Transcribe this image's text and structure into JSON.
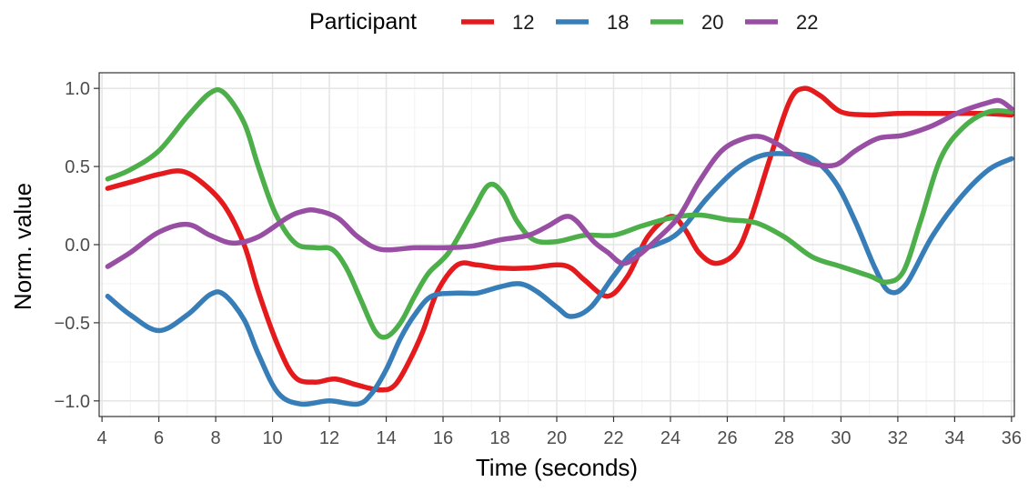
{
  "chart_data": {
    "type": "line",
    "title": "",
    "xlabel": "Time (seconds)",
    "ylabel": "Norm. value",
    "xlim": [
      3.9,
      36.1
    ],
    "ylim": [
      -1.1,
      1.1
    ],
    "x_ticks": [
      4,
      6,
      8,
      10,
      12,
      14,
      16,
      18,
      20,
      22,
      24,
      26,
      28,
      30,
      32,
      34,
      36
    ],
    "y_ticks": [
      -1.0,
      -0.5,
      0.0,
      0.5,
      1.0
    ],
    "x_tick_labels": [
      "4",
      "6",
      "8",
      "10",
      "12",
      "14",
      "16",
      "18",
      "20",
      "22",
      "24",
      "26",
      "28",
      "30",
      "32",
      "34",
      "36"
    ],
    "y_tick_labels": [
      "−1.0",
      "−0.5",
      "0.0",
      "0.5",
      "1.0"
    ],
    "grid": true,
    "legend": {
      "title": "Participant",
      "placement": "top"
    },
    "series": [
      {
        "name": "12",
        "color": "#e41a1c",
        "points": [
          [
            4.2,
            0.36
          ],
          [
            5,
            0.4
          ],
          [
            6,
            0.45
          ],
          [
            6.8,
            0.47
          ],
          [
            7.5,
            0.4
          ],
          [
            8.3,
            0.25
          ],
          [
            9,
            0.0
          ],
          [
            9.5,
            -0.3
          ],
          [
            10.2,
            -0.65
          ],
          [
            10.8,
            -0.85
          ],
          [
            11.5,
            -0.88
          ],
          [
            12.2,
            -0.86
          ],
          [
            13,
            -0.9
          ],
          [
            13.8,
            -0.93
          ],
          [
            14.3,
            -0.9
          ],
          [
            14.8,
            -0.75
          ],
          [
            15.3,
            -0.55
          ],
          [
            15.8,
            -0.3
          ],
          [
            16.5,
            -0.13
          ],
          [
            17.2,
            -0.13
          ],
          [
            18,
            -0.15
          ],
          [
            19,
            -0.15
          ],
          [
            20,
            -0.13
          ],
          [
            20.5,
            -0.15
          ],
          [
            21,
            -0.23
          ],
          [
            21.8,
            -0.33
          ],
          [
            22.5,
            -0.2
          ],
          [
            23.2,
            0.05
          ],
          [
            24,
            0.18
          ],
          [
            24.5,
            0.1
          ],
          [
            25,
            -0.05
          ],
          [
            25.6,
            -0.12
          ],
          [
            26.3,
            -0.05
          ],
          [
            26.8,
            0.15
          ],
          [
            27.5,
            0.55
          ],
          [
            28.2,
            0.92
          ],
          [
            28.7,
            1.0
          ],
          [
            29.3,
            0.95
          ],
          [
            30,
            0.85
          ],
          [
            31,
            0.83
          ],
          [
            32,
            0.84
          ],
          [
            33,
            0.84
          ],
          [
            34,
            0.84
          ],
          [
            35,
            0.84
          ],
          [
            36,
            0.83
          ]
        ]
      },
      {
        "name": "18",
        "color": "#377eb8",
        "points": [
          [
            4.2,
            -0.33
          ],
          [
            5,
            -0.45
          ],
          [
            6,
            -0.55
          ],
          [
            7,
            -0.45
          ],
          [
            7.8,
            -0.32
          ],
          [
            8.3,
            -0.32
          ],
          [
            9,
            -0.48
          ],
          [
            9.5,
            -0.7
          ],
          [
            10.2,
            -0.95
          ],
          [
            11,
            -1.02
          ],
          [
            12,
            -1.0
          ],
          [
            13,
            -1.02
          ],
          [
            13.5,
            -0.95
          ],
          [
            14,
            -0.8
          ],
          [
            14.5,
            -0.6
          ],
          [
            15,
            -0.45
          ],
          [
            15.6,
            -0.33
          ],
          [
            16.5,
            -0.31
          ],
          [
            17.2,
            -0.31
          ],
          [
            18,
            -0.27
          ],
          [
            18.7,
            -0.25
          ],
          [
            19.3,
            -0.3
          ],
          [
            20,
            -0.4
          ],
          [
            20.5,
            -0.46
          ],
          [
            21.2,
            -0.4
          ],
          [
            22,
            -0.2
          ],
          [
            22.7,
            -0.05
          ],
          [
            23.5,
            0.0
          ],
          [
            24.3,
            0.08
          ],
          [
            25.3,
            0.3
          ],
          [
            26.3,
            0.48
          ],
          [
            27.2,
            0.57
          ],
          [
            28.2,
            0.58
          ],
          [
            29,
            0.55
          ],
          [
            29.8,
            0.4
          ],
          [
            30.5,
            0.15
          ],
          [
            31.2,
            -0.15
          ],
          [
            31.7,
            -0.3
          ],
          [
            32.3,
            -0.25
          ],
          [
            33.2,
            0.05
          ],
          [
            34.2,
            0.3
          ],
          [
            35.2,
            0.48
          ],
          [
            36,
            0.55
          ]
        ]
      },
      {
        "name": "20",
        "color": "#4daf4a",
        "points": [
          [
            4.2,
            0.42
          ],
          [
            5,
            0.48
          ],
          [
            6,
            0.6
          ],
          [
            7,
            0.82
          ],
          [
            7.8,
            0.97
          ],
          [
            8.3,
            0.97
          ],
          [
            9,
            0.78
          ],
          [
            9.5,
            0.5
          ],
          [
            10.1,
            0.2
          ],
          [
            10.8,
            0.01
          ],
          [
            11.5,
            -0.02
          ],
          [
            12.1,
            -0.03
          ],
          [
            12.6,
            -0.15
          ],
          [
            13.1,
            -0.35
          ],
          [
            13.6,
            -0.55
          ],
          [
            14,
            -0.59
          ],
          [
            14.5,
            -0.5
          ],
          [
            15,
            -0.33
          ],
          [
            15.5,
            -0.18
          ],
          [
            16.2,
            -0.05
          ],
          [
            17,
            0.2
          ],
          [
            17.6,
            0.38
          ],
          [
            18.1,
            0.33
          ],
          [
            18.6,
            0.15
          ],
          [
            19.2,
            0.03
          ],
          [
            20,
            0.02
          ],
          [
            21,
            0.06
          ],
          [
            22,
            0.06
          ],
          [
            23,
            0.12
          ],
          [
            24,
            0.17
          ],
          [
            25,
            0.19
          ],
          [
            26,
            0.16
          ],
          [
            27,
            0.14
          ],
          [
            28,
            0.05
          ],
          [
            29,
            -0.08
          ],
          [
            30,
            -0.14
          ],
          [
            31,
            -0.2
          ],
          [
            31.6,
            -0.24
          ],
          [
            32.2,
            -0.17
          ],
          [
            32.8,
            0.15
          ],
          [
            33.5,
            0.55
          ],
          [
            34.3,
            0.75
          ],
          [
            35.2,
            0.85
          ],
          [
            36,
            0.85
          ]
        ]
      },
      {
        "name": "22",
        "color": "#984ea3",
        "points": [
          [
            4.2,
            -0.14
          ],
          [
            5,
            -0.05
          ],
          [
            6,
            0.08
          ],
          [
            7,
            0.13
          ],
          [
            7.8,
            0.06
          ],
          [
            8.6,
            0.01
          ],
          [
            9.5,
            0.05
          ],
          [
            10.5,
            0.17
          ],
          [
            11,
            0.21
          ],
          [
            11.5,
            0.22
          ],
          [
            12.3,
            0.17
          ],
          [
            13,
            0.05
          ],
          [
            13.8,
            -0.03
          ],
          [
            15,
            -0.02
          ],
          [
            16,
            -0.02
          ],
          [
            17,
            -0.01
          ],
          [
            18,
            0.03
          ],
          [
            19,
            0.06
          ],
          [
            19.7,
            0.12
          ],
          [
            20.3,
            0.18
          ],
          [
            20.7,
            0.15
          ],
          [
            21.3,
            0.02
          ],
          [
            21.8,
            -0.05
          ],
          [
            22.3,
            -0.12
          ],
          [
            22.8,
            -0.08
          ],
          [
            23.5,
            0.03
          ],
          [
            24.3,
            0.18
          ],
          [
            25,
            0.4
          ],
          [
            25.8,
            0.6
          ],
          [
            26.6,
            0.68
          ],
          [
            27.2,
            0.69
          ],
          [
            27.8,
            0.64
          ],
          [
            28.3,
            0.58
          ],
          [
            29,
            0.52
          ],
          [
            29.8,
            0.51
          ],
          [
            30.5,
            0.6
          ],
          [
            31.3,
            0.68
          ],
          [
            32.2,
            0.7
          ],
          [
            33.2,
            0.76
          ],
          [
            34.2,
            0.85
          ],
          [
            35.2,
            0.91
          ],
          [
            35.6,
            0.92
          ],
          [
            36,
            0.87
          ]
        ]
      }
    ]
  }
}
